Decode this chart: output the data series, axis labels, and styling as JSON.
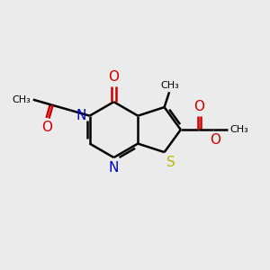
{
  "bg_color": "#ebebeb",
  "bond_color": "#000000",
  "n_color": "#0000cc",
  "o_color": "#cc0000",
  "s_color": "#b8b800",
  "line_width": 1.8,
  "figsize": [
    3.0,
    3.0
  ],
  "dpi": 100,
  "xlim": [
    0,
    10
  ],
  "ylim": [
    0,
    10
  ]
}
